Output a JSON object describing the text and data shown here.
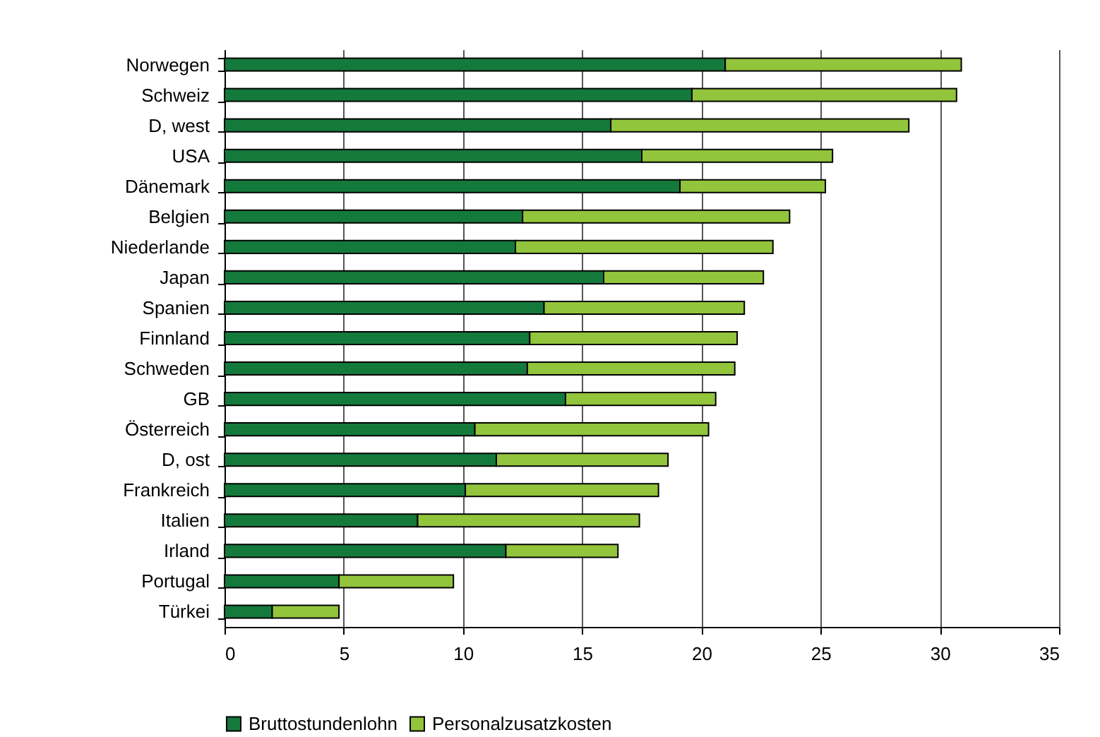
{
  "chart_data": {
    "type": "bar",
    "orientation": "horizontal",
    "stacked": true,
    "categories": [
      "Norwegen",
      "Schweiz",
      "D, west",
      "USA",
      "Dänemark",
      "Belgien",
      "Niederlande",
      "Japan",
      "Spanien",
      "Finnland",
      "Schweden",
      "GB",
      "Österreich",
      "D, ost",
      "Frankreich",
      "Italien",
      "Irland",
      "Portugal",
      "Türkei"
    ],
    "series": [
      {
        "name": "Bruttostundenlohn",
        "color": "#147a3c",
        "values": [
          21.0,
          19.6,
          16.2,
          17.5,
          19.1,
          12.5,
          12.2,
          15.9,
          13.4,
          12.8,
          12.7,
          14.3,
          10.5,
          11.4,
          10.1,
          8.1,
          11.8,
          4.8,
          2.0
        ]
      },
      {
        "name": "Personalzusatzkosten",
        "color": "#92c43c",
        "values": [
          9.9,
          11.1,
          12.5,
          8.0,
          6.1,
          11.2,
          10.8,
          6.7,
          8.4,
          8.7,
          8.7,
          6.3,
          9.8,
          7.2,
          8.1,
          9.3,
          4.7,
          4.8,
          2.8
        ]
      }
    ],
    "xlim": [
      0,
      35
    ],
    "xticks": [
      0,
      5,
      10,
      15,
      20,
      25,
      30,
      35
    ],
    "grid": "x",
    "legend": "bottom"
  }
}
